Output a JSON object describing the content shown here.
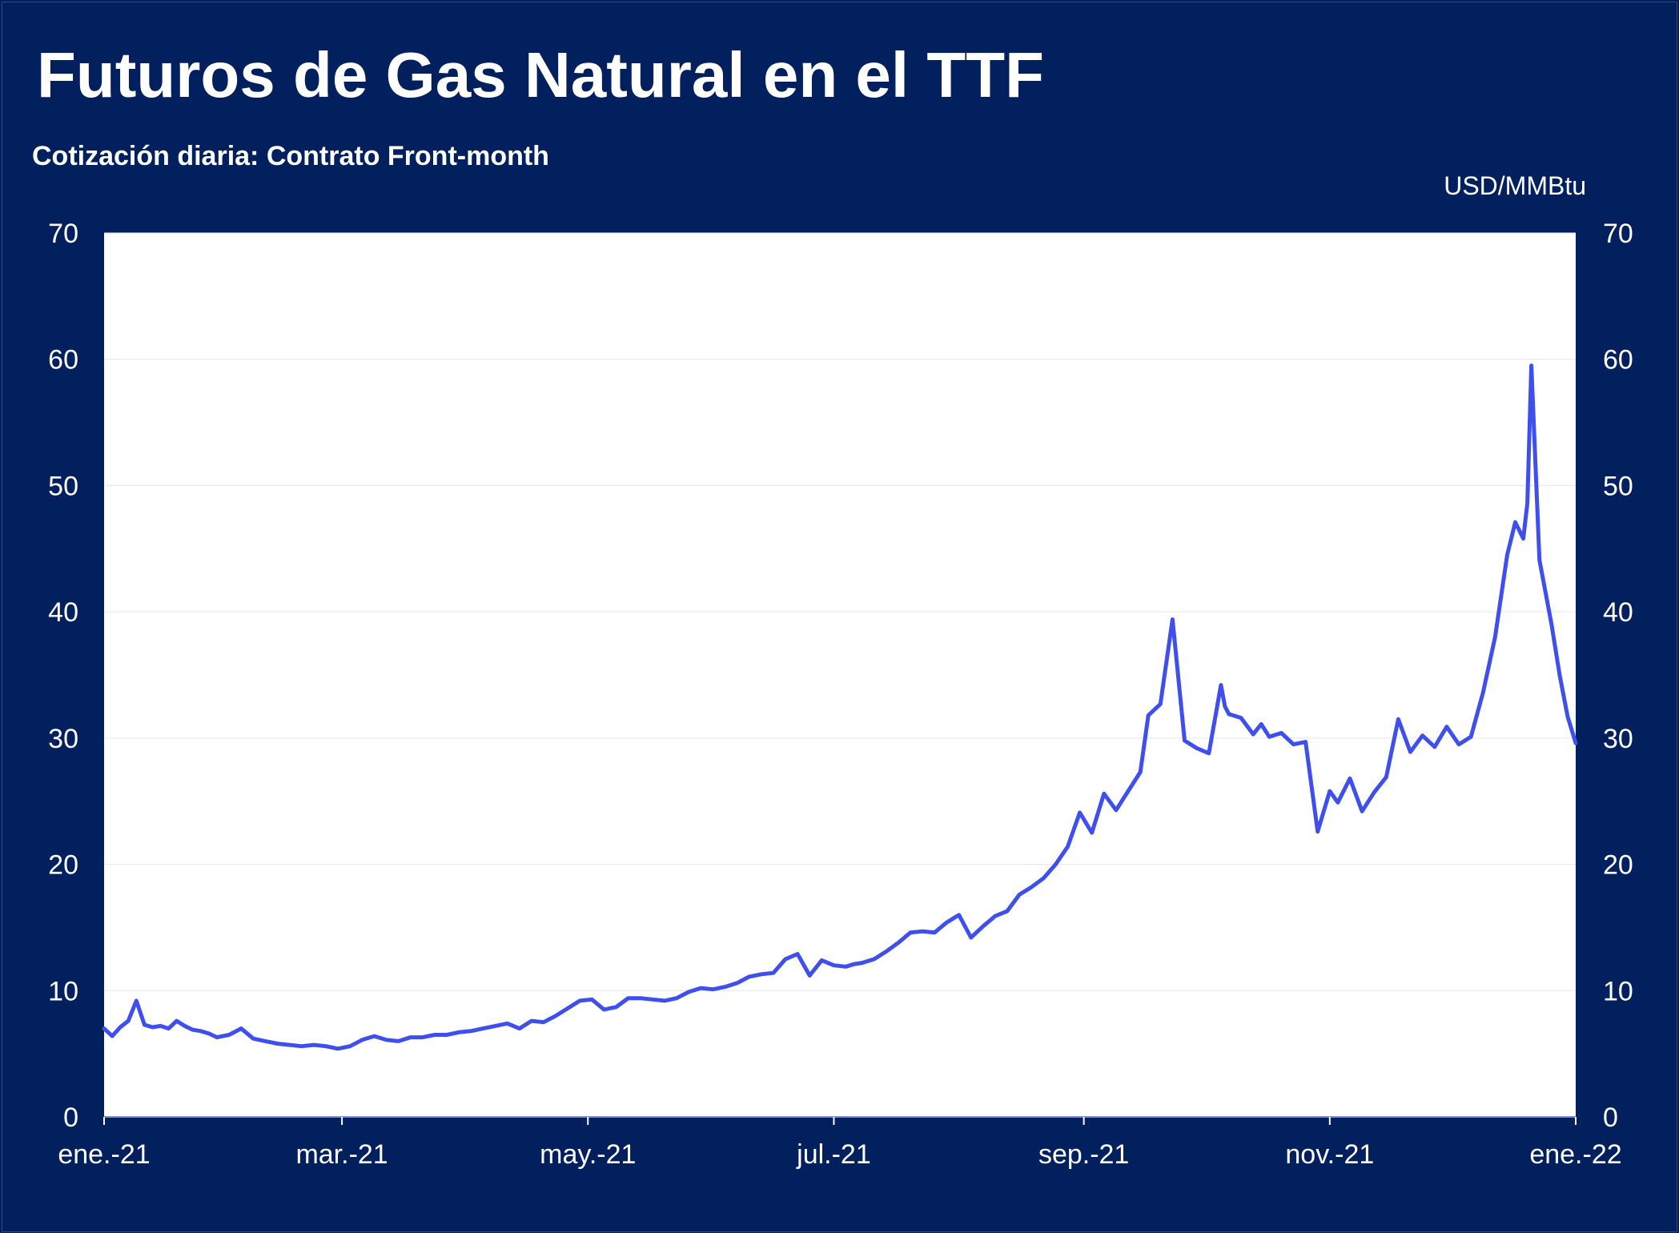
{
  "header": {
    "title": "Futuros de Gas Natural en el TTF",
    "subtitle": "Cotización diaria: Contrato Front-month",
    "unit": "USD/MMBtu"
  },
  "colors": {
    "background": "#02205e",
    "plot_area": "#ffffff",
    "line": "#3f4fee",
    "text": "#ffffff",
    "grid": "#e6e6e6"
  },
  "chart_data": {
    "type": "line",
    "title": "Futuros de Gas Natural en el TTF",
    "subtitle": "Cotización diaria: Contrato Front-month",
    "ylabel": "USD/MMBtu",
    "ylim": [
      0,
      70
    ],
    "yticks": [
      "0",
      "10",
      "20",
      "30",
      "40",
      "50",
      "60",
      "70"
    ],
    "xlim": [
      "2021-01-01",
      "2022-01-01"
    ],
    "xticks": [
      {
        "label": "ene.-21",
        "date": "2021-01-01"
      },
      {
        "label": "mar.-21",
        "date": "2021-03-01"
      },
      {
        "label": "may.-21",
        "date": "2021-05-01"
      },
      {
        "label": "jul.-21",
        "date": "2021-07-01"
      },
      {
        "label": "sep.-21",
        "date": "2021-09-01"
      },
      {
        "label": "nov.-21",
        "date": "2021-11-01"
      },
      {
        "label": "ene.-22",
        "date": "2022-01-01"
      }
    ],
    "grid": true,
    "legend": "none",
    "secondary_y_axis": true,
    "series": [
      {
        "x": [
          "2021-01-01",
          "2021-01-03",
          "2021-01-05",
          "2021-01-07",
          "2021-01-09",
          "2021-01-11",
          "2021-01-13",
          "2021-01-15",
          "2021-01-17",
          "2021-01-19",
          "2021-01-21",
          "2021-01-23",
          "2021-01-25",
          "2021-01-27",
          "2021-01-29",
          "2021-02-01",
          "2021-02-04",
          "2021-02-07",
          "2021-02-10",
          "2021-02-13",
          "2021-02-16",
          "2021-02-19",
          "2021-02-22",
          "2021-02-25",
          "2021-02-28",
          "2021-03-03",
          "2021-03-06",
          "2021-03-09",
          "2021-03-12",
          "2021-03-15",
          "2021-03-18",
          "2021-03-21",
          "2021-03-24",
          "2021-03-27",
          "2021-03-30",
          "2021-04-02",
          "2021-04-05",
          "2021-04-08",
          "2021-04-11",
          "2021-04-14",
          "2021-04-17",
          "2021-04-20",
          "2021-04-23",
          "2021-04-26",
          "2021-04-29",
          "2021-05-02",
          "2021-05-05",
          "2021-05-08",
          "2021-05-11",
          "2021-05-14",
          "2021-05-17",
          "2021-05-20",
          "2021-05-23",
          "2021-05-26",
          "2021-05-29",
          "2021-06-01",
          "2021-06-04",
          "2021-06-07",
          "2021-06-10",
          "2021-06-13",
          "2021-06-16",
          "2021-06-19",
          "2021-06-22",
          "2021-06-25",
          "2021-06-28",
          "2021-07-01",
          "2021-07-04",
          "2021-07-06",
          "2021-07-08",
          "2021-07-11",
          "2021-07-14",
          "2021-07-17",
          "2021-07-20",
          "2021-07-23",
          "2021-07-26",
          "2021-07-29",
          "2021-08-01",
          "2021-08-04",
          "2021-08-07",
          "2021-08-10",
          "2021-08-13",
          "2021-08-16",
          "2021-08-19",
          "2021-08-22",
          "2021-08-25",
          "2021-08-28",
          "2021-08-31",
          "2021-09-03",
          "2021-09-06",
          "2021-09-09",
          "2021-09-12",
          "2021-09-15",
          "2021-09-17",
          "2021-09-20",
          "2021-09-23",
          "2021-09-26",
          "2021-09-29",
          "2021-10-02",
          "2021-10-05",
          "2021-10-06",
          "2021-10-07",
          "2021-10-10",
          "2021-10-13",
          "2021-10-15",
          "2021-10-17",
          "2021-10-20",
          "2021-10-23",
          "2021-10-26",
          "2021-10-29",
          "2021-11-01",
          "2021-11-03",
          "2021-11-06",
          "2021-11-09",
          "2021-11-12",
          "2021-11-15",
          "2021-11-18",
          "2021-11-21",
          "2021-11-24",
          "2021-11-27",
          "2021-11-30",
          "2021-12-03",
          "2021-12-06",
          "2021-12-09",
          "2021-12-12",
          "2021-12-15",
          "2021-12-17",
          "2021-12-19",
          "2021-12-20",
          "2021-12-21",
          "2021-12-23",
          "2021-12-26",
          "2021-12-28",
          "2021-12-30",
          "2022-01-01"
        ],
        "values": [
          7.0,
          6.4,
          7.1,
          7.6,
          9.2,
          7.3,
          7.1,
          7.2,
          7.0,
          7.6,
          7.2,
          6.9,
          6.8,
          6.6,
          6.3,
          6.5,
          7.0,
          6.2,
          6.0,
          5.8,
          5.7,
          5.6,
          5.7,
          5.6,
          5.4,
          5.6,
          6.1,
          6.4,
          6.1,
          6.0,
          6.3,
          6.3,
          6.5,
          6.5,
          6.7,
          6.8,
          7.0,
          7.2,
          7.4,
          7.0,
          7.6,
          7.5,
          8.0,
          8.6,
          9.2,
          9.3,
          8.5,
          8.7,
          9.4,
          9.4,
          9.3,
          9.2,
          9.4,
          9.9,
          10.2,
          10.1,
          10.3,
          10.6,
          11.1,
          11.3,
          11.4,
          12.5,
          12.9,
          11.2,
          12.4,
          12.0,
          11.9,
          12.1,
          12.2,
          12.5,
          13.1,
          13.8,
          14.6,
          14.7,
          14.6,
          15.4,
          16.0,
          14.2,
          15.1,
          15.9,
          16.3,
          17.6,
          18.2,
          18.9,
          20.0,
          21.4,
          24.1,
          22.5,
          25.6,
          24.3,
          25.8,
          27.3,
          31.8,
          32.7,
          39.4,
          29.8,
          29.2,
          28.8,
          34.2,
          32.5,
          31.9,
          31.6,
          30.3,
          31.1,
          30.1,
          30.4,
          29.5,
          29.7,
          22.6,
          25.8,
          24.9,
          26.8,
          24.2,
          25.7,
          26.9,
          31.5,
          28.9,
          30.2,
          29.3,
          30.9,
          29.5,
          30.1,
          33.6,
          38.0,
          44.5,
          47.1,
          45.8,
          48.6,
          59.5,
          44.1,
          39.0,
          35.0,
          31.7,
          29.6
        ]
      }
    ]
  }
}
